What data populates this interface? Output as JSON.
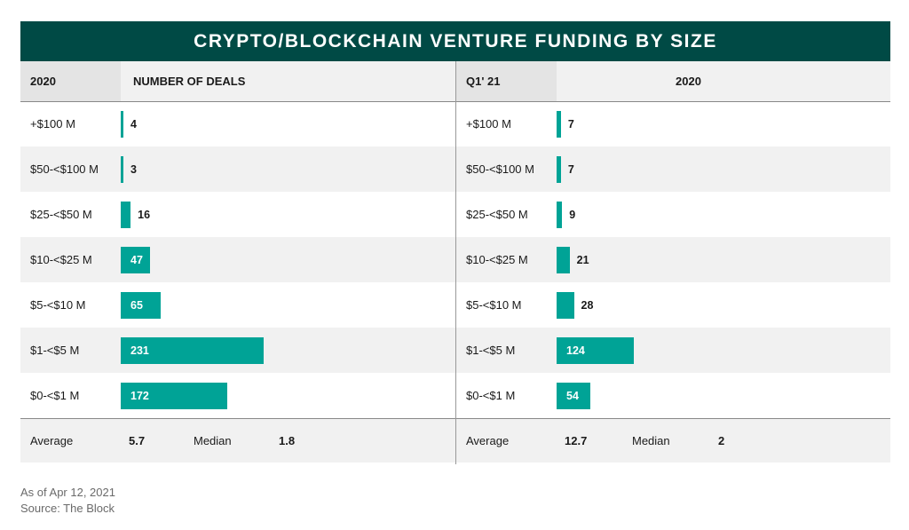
{
  "title": "CRYPTO/BLOCKCHAIN VENTURE FUNDING BY SIZE",
  "colors": {
    "title_bg": "#004a45",
    "bar": "#00a396",
    "row_alt": "#f1f1f1"
  },
  "chart_data": [
    {
      "type": "bar",
      "orientation": "horizontal",
      "period_label": "2020",
      "column_header": "NUMBER OF DEALS",
      "categories": [
        "+$100 M",
        "$50-<$100 M",
        "$25-<$50 M",
        "$10-<$25 M",
        "$5-<$10 M",
        "$1-<$5 M",
        "$0-<$1 M"
      ],
      "values": [
        4,
        3,
        16,
        47,
        65,
        231,
        172
      ],
      "xlim": [
        0,
        540
      ],
      "summary": {
        "average_label": "Average",
        "average": "5.7",
        "median_label": "Median",
        "median": "1.8"
      }
    },
    {
      "type": "bar",
      "orientation": "horizontal",
      "period_label": "Q1' 21",
      "column_header": "2020",
      "categories": [
        "+$100 M",
        "$50-<$100 M",
        "$25-<$50 M",
        "$10-<$25 M",
        "$5-<$10 M",
        "$1-<$5 M",
        "$0-<$1 M"
      ],
      "values": [
        7,
        7,
        9,
        21,
        28,
        124,
        54
      ],
      "xlim": [
        0,
        540
      ],
      "summary": {
        "average_label": "Average",
        "average": "12.7",
        "median_label": "Median",
        "median": "2"
      }
    }
  ],
  "notes": {
    "as_of": "As of Apr 12, 2021",
    "source": "Source: The Block"
  }
}
